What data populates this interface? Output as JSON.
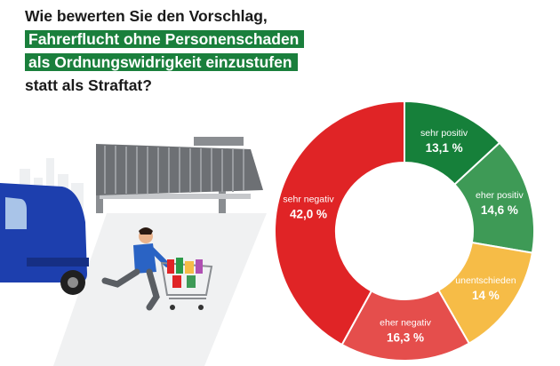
{
  "title": {
    "line1": "Wie bewerten Sie den Vorschlag,",
    "line2": "Fahrerflucht ohne Personenschaden",
    "line3": "als Ordnungswidrigkeit einzustufen",
    "line4": "statt als Straftat?"
  },
  "chart_data": {
    "type": "pie",
    "categories": [
      "sehr positiv",
      "eher positiv",
      "unentschieden",
      "eher negativ",
      "sehr negativ"
    ],
    "values": [
      13.1,
      14.6,
      14.0,
      16.3,
      42.0
    ],
    "value_labels": [
      "13,1 %",
      "14,6 %",
      "14 %",
      "16,3 %",
      "42,0 %"
    ],
    "colors": [
      "#16803a",
      "#3e9a56",
      "#f6bc47",
      "#e54e4c",
      "#e02426"
    ],
    "donut": true
  }
}
